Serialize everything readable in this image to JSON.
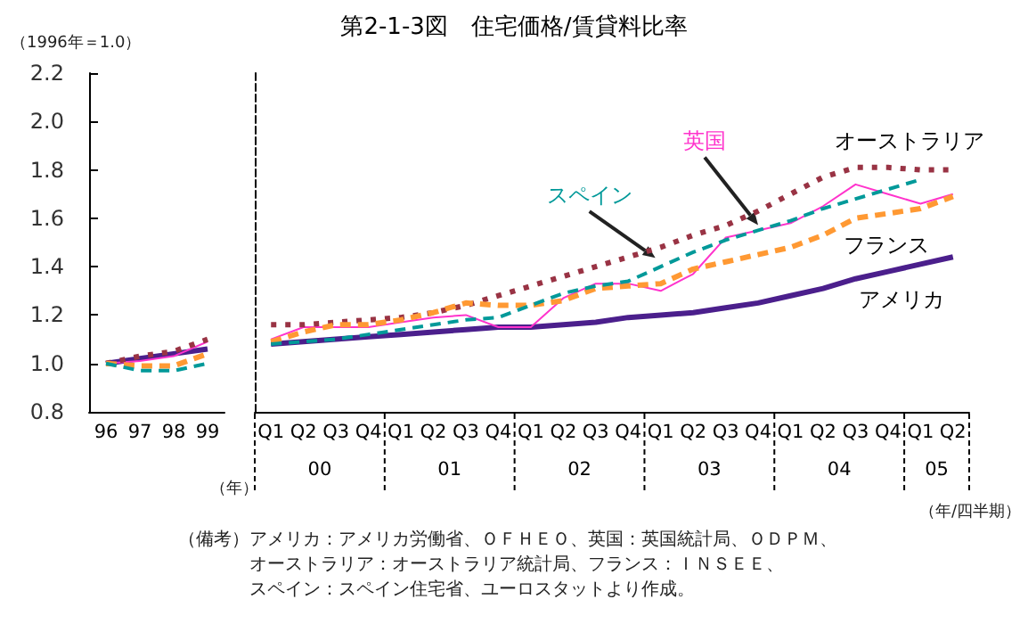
{
  "chart_data": [
    {
      "type": "line",
      "ylabel": "（1996年＝1.0）",
      "xlabel": "（年）",
      "categories": [
        "96",
        "97",
        "98",
        "99"
      ],
      "series": [
        {
          "color": "#4b1f8c",
          "line_style": "solid",
          "values": [
            1.0,
            1.02,
            1.04,
            1.06
          ]
        },
        {
          "color": "#ff33cc",
          "line_style": "solid",
          "values": [
            1.0,
            1.01,
            1.03,
            1.09
          ]
        },
        {
          "color": "#993344",
          "line_style": "dotted",
          "values": [
            1.0,
            1.03,
            1.05,
            1.1
          ]
        },
        {
          "color": "#ff9933",
          "line_style": "dashed",
          "values": [
            1.0,
            0.99,
            0.99,
            1.04
          ]
        },
        {
          "color": "#009999",
          "line_style": "dashed",
          "values": [
            1.0,
            0.97,
            0.97,
            1.0
          ]
        }
      ],
      "ylim": [
        0.8,
        2.2
      ],
      "yticks": [
        {
          "value": 0.8,
          "label": "0.8"
        },
        {
          "value": 1,
          "label": "1.0"
        },
        {
          "value": 1.2,
          "label": "1.2"
        },
        {
          "value": 1.4,
          "label": "1.4"
        },
        {
          "value": 1.6,
          "label": "1.6"
        },
        {
          "value": 1.8,
          "label": "1.8"
        },
        {
          "value": 2,
          "label": "2.0"
        },
        {
          "value": 2.2,
          "label": "2.2"
        }
      ],
      "marker": "none",
      "grid": false,
      "legend": false
    },
    {
      "type": "line",
      "title": "第2-1-3図　住宅価格/賃貸料比率",
      "xlabel": "（年/四半期）",
      "categories": [
        "Q1",
        "Q2",
        "Q3",
        "Q4",
        "Q1",
        "Q2",
        "Q3",
        "Q4",
        "Q1",
        "Q2",
        "Q3",
        "Q4",
        "Q1",
        "Q2",
        "Q3",
        "Q4",
        "Q1",
        "Q2",
        "Q3",
        "Q4",
        "Q1",
        "Q2"
      ],
      "series": [
        {
          "name": "アメリカ",
          "color": "#4b1f8c",
          "line_style": "solid",
          "values": [
            1.08,
            1.09,
            1.1,
            1.11,
            1.12,
            1.13,
            1.14,
            1.15,
            1.15,
            1.16,
            1.17,
            1.19,
            1.2,
            1.21,
            1.23,
            1.25,
            1.28,
            1.31,
            1.35,
            1.38,
            1.41,
            1.44
          ]
        },
        {
          "name": "英国",
          "color": "#ff33cc",
          "line_style": "solid",
          "values": [
            1.1,
            1.15,
            1.15,
            1.15,
            1.17,
            1.19,
            1.2,
            1.15,
            1.15,
            1.27,
            1.33,
            1.33,
            1.3,
            1.37,
            1.52,
            1.55,
            1.58,
            1.65,
            1.74,
            1.7,
            1.66,
            1.7
          ]
        },
        {
          "name": "オーストラリア",
          "color": "#993344",
          "line_style": "dotted",
          "values": [
            1.16,
            1.16,
            1.17,
            1.18,
            1.19,
            1.21,
            1.24,
            1.28,
            1.32,
            1.36,
            1.4,
            1.44,
            1.48,
            1.53,
            1.57,
            1.63,
            1.7,
            1.77,
            1.81,
            1.81,
            1.8,
            1.8
          ]
        },
        {
          "name": "フランス",
          "color": "#ff9933",
          "line_style": "dashed",
          "values": [
            1.09,
            1.13,
            1.16,
            1.16,
            1.18,
            1.21,
            1.25,
            1.24,
            1.24,
            1.26,
            1.31,
            1.32,
            1.33,
            1.39,
            1.42,
            1.45,
            1.48,
            1.53,
            1.6,
            1.62,
            1.64,
            1.69
          ]
        },
        {
          "name": "スペイン",
          "color": "#009999",
          "line_style": "dashed",
          "values": [
            1.08,
            1.09,
            1.1,
            1.12,
            1.14,
            1.16,
            1.18,
            1.19,
            1.24,
            1.29,
            1.32,
            1.34,
            1.4,
            1.46,
            1.51,
            1.55,
            1.59,
            1.64,
            1.68,
            1.72,
            1.76,
            null
          ]
        }
      ],
      "ylim": [
        0.8,
        2.2
      ],
      "tick_labels": "x",
      "annotations": [
        "00",
        "01",
        "02",
        "03",
        "04",
        "05",
        "（備考）アメリカ：アメリカ労働省、ＯＦＨＥＯ、英国：英国統計局、ＯＤＰＭ、",
        "オーストラリア：オーストラリア統計局、フランス：ＩＮＳＥＥ、",
        "スペイン：スペイン住宅省、ユーロスタットより作成。"
      ],
      "marker": "none",
      "grid": false,
      "legend": false
    }
  ]
}
